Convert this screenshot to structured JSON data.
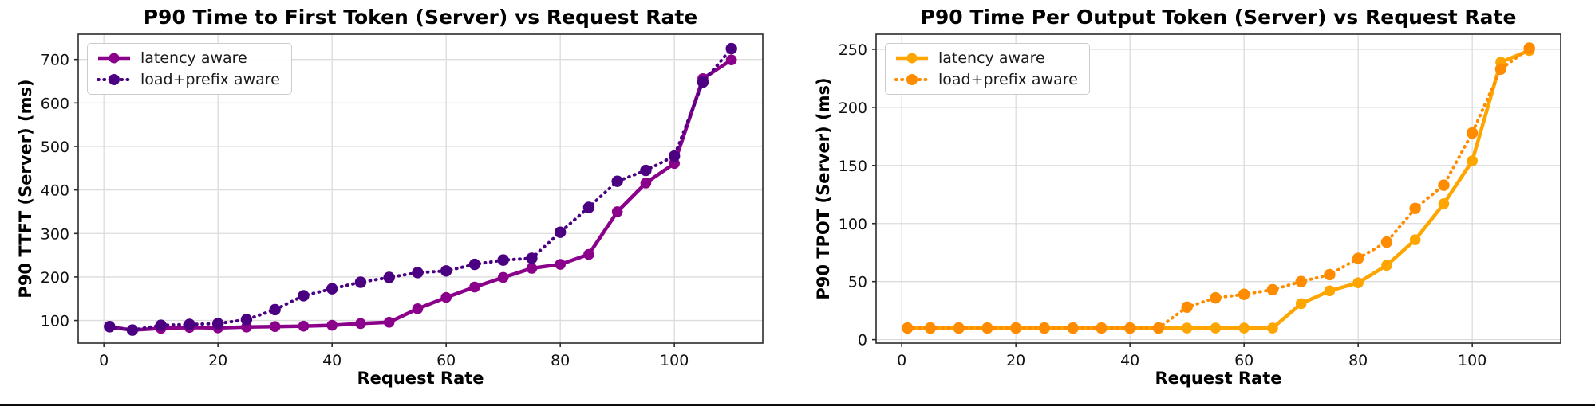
{
  "figure": {
    "background": "#ffffff",
    "grid_color": "#dcdcdc",
    "spine_color": "#2b2b2b",
    "tick_text_color": "#111111"
  },
  "chart_data": [
    {
      "type": "line",
      "title": "P90 Time to First Token (Server) vs Request Rate",
      "xlabel": "Request Rate",
      "ylabel": "P90 TTFT (Server) (ms)",
      "x": [
        1,
        5,
        10,
        15,
        20,
        25,
        30,
        35,
        40,
        45,
        50,
        55,
        60,
        65,
        70,
        75,
        80,
        85,
        90,
        95,
        100,
        105,
        110
      ],
      "series": [
        {
          "name": "latency aware",
          "style": "solid",
          "color": "#8B008B",
          "values": [
            85,
            78,
            82,
            84,
            83,
            85,
            86,
            87,
            89,
            93,
            96,
            127,
            153,
            177,
            199,
            220,
            229,
            252,
            350,
            416,
            461,
            656,
            699
          ]
        },
        {
          "name": "load+prefix aware",
          "style": "dotted",
          "color": "#4B0082",
          "values": [
            86,
            78,
            89,
            91,
            93,
            102,
            125,
            157,
            173,
            188,
            199,
            210,
            214,
            229,
            239,
            243,
            303,
            360,
            420,
            445,
            478,
            648,
            725
          ]
        }
      ],
      "xticks": [
        0,
        20,
        40,
        60,
        80,
        100
      ],
      "yticks": [
        100,
        200,
        300,
        400,
        500,
        600,
        700
      ],
      "xlim": [
        -4.5,
        115.5
      ],
      "ylim": [
        48,
        758
      ],
      "grid": true,
      "legend_position": "upper left"
    },
    {
      "type": "line",
      "title": "P90 Time Per Output Token (Server) vs Request Rate",
      "xlabel": "Request Rate",
      "ylabel": "P90 TPOT (Server) (ms)",
      "x": [
        1,
        5,
        10,
        15,
        20,
        25,
        30,
        35,
        40,
        45,
        50,
        55,
        60,
        65,
        70,
        75,
        80,
        85,
        90,
        95,
        100,
        105,
        110
      ],
      "series": [
        {
          "name": "latency aware",
          "style": "solid",
          "color": "#FFA500",
          "values": [
            10,
            10,
            10,
            10,
            10,
            10,
            10,
            10,
            10,
            10,
            10,
            10,
            10,
            10,
            31,
            42,
            49,
            64,
            86,
            117,
            154,
            239,
            249
          ]
        },
        {
          "name": "load+prefix aware",
          "style": "dotted",
          "color": "#FF8C00",
          "values": [
            10,
            10,
            10,
            10,
            10,
            10,
            10,
            10,
            10,
            10,
            28,
            36,
            39,
            43,
            50,
            56,
            70,
            84,
            113,
            133,
            178,
            233,
            251
          ]
        }
      ],
      "xticks": [
        0,
        20,
        40,
        60,
        80,
        100
      ],
      "yticks": [
        0,
        50,
        100,
        150,
        200,
        250
      ],
      "xlim": [
        -4.5,
        115.5
      ],
      "ylim": [
        -3,
        263
      ],
      "grid": true,
      "legend_position": "upper left"
    }
  ]
}
